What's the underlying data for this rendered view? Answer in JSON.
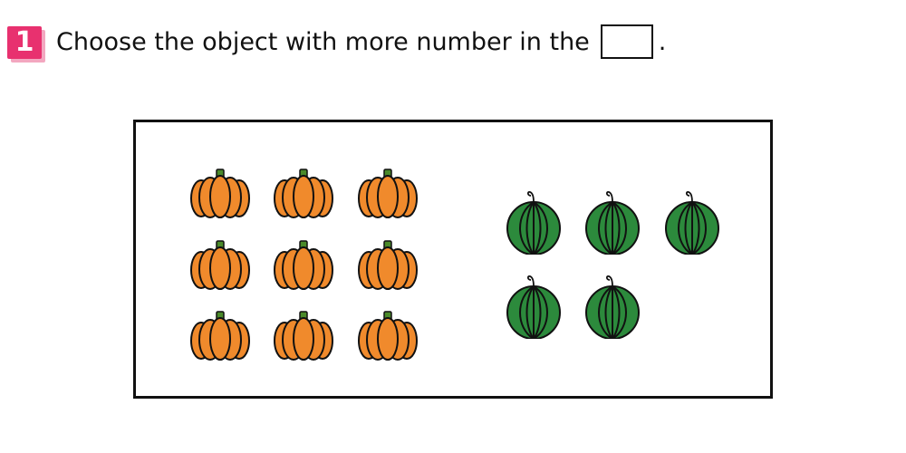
{
  "question": {
    "number": "1",
    "text": "Choose the object with more number in the",
    "suffix": "."
  },
  "groups": {
    "pumpkins": {
      "icon": "pumpkin-icon",
      "count": 9,
      "color": "#f08a2c"
    },
    "watermelons": {
      "icon": "watermelon-icon",
      "count": 5,
      "color": "#2c8a3c"
    }
  }
}
